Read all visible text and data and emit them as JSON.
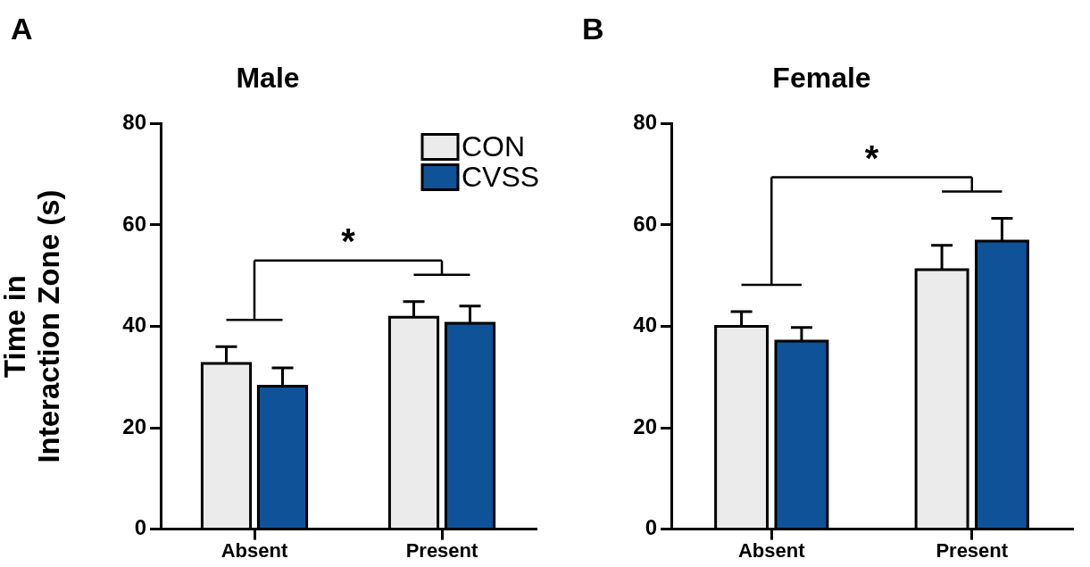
{
  "chart_data": [
    {
      "type": "bar",
      "title": "Male",
      "ylabel": "Time in\nInteraction Zone (s)",
      "categories": [
        "Absent",
        "Present"
      ],
      "series": [
        {
          "name": "CON",
          "color": "#ebebeb",
          "values": [
            32.7,
            41.8
          ],
          "errors": [
            3.3,
            3.1
          ]
        },
        {
          "name": "CVSS",
          "color": "#0f5298",
          "values": [
            28.2,
            40.6
          ],
          "errors": [
            3.6,
            3.4
          ]
        }
      ],
      "ylim": [
        0,
        80
      ],
      "yticks": [
        0,
        20,
        40,
        60,
        80
      ],
      "grid": false,
      "legend": "top right",
      "annotations": [
        "A",
        "*"
      ]
    },
    {
      "type": "bar",
      "title": "Female",
      "categories": [
        "Absent",
        "Present"
      ],
      "series": [
        {
          "color": "#ebebeb",
          "values": [
            40.0,
            51.2
          ],
          "errors": [
            2.9,
            4.8
          ]
        },
        {
          "color": "#0f5298",
          "values": [
            37.1,
            56.8
          ],
          "errors": [
            2.7,
            4.5
          ]
        }
      ],
      "ylim": [
        0,
        80
      ],
      "yticks": [
        0,
        20,
        40,
        60,
        80
      ],
      "grid": false,
      "legend": false,
      "annotations": [
        "B",
        "*"
      ]
    }
  ]
}
